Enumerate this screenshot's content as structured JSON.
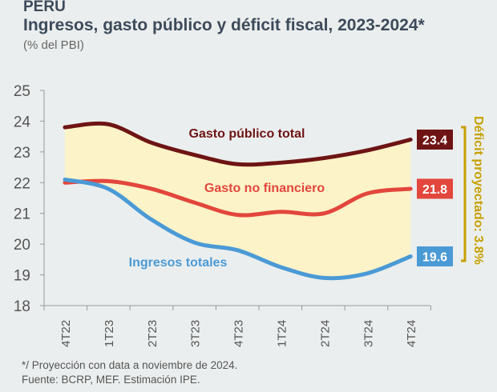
{
  "header": {
    "country": "PERÚ",
    "title": "Ingresos, gasto público y déficit fiscal, 2023-2024*",
    "subtitle": "(% del PBI)"
  },
  "chart_data": {
    "type": "line",
    "categories": [
      "4T22",
      "1T23",
      "2T23",
      "3T23",
      "4T23",
      "1T24",
      "2T24",
      "3T24",
      "4T24"
    ],
    "ylim": [
      18,
      25
    ],
    "yticks": [
      "18",
      "19",
      "20",
      "21",
      "22",
      "23",
      "24",
      "25"
    ],
    "grid": false,
    "series": [
      {
        "name": "Gasto público total",
        "color": "#6e1414",
        "values": [
          23.8,
          23.9,
          23.3,
          22.9,
          22.6,
          22.65,
          22.8,
          23.05,
          23.4
        ],
        "end_label": "23.4"
      },
      {
        "name": "Gasto no financiero",
        "color": "#e2463c",
        "values": [
          22.0,
          22.05,
          21.8,
          21.35,
          20.95,
          21.05,
          21.0,
          21.65,
          21.8
        ],
        "end_label": "21.8"
      },
      {
        "name": "Ingresos totales",
        "color": "#4a9ad6",
        "values": [
          22.1,
          21.8,
          20.8,
          20.05,
          19.8,
          19.25,
          18.9,
          19.05,
          19.6
        ],
        "end_label": "19.6"
      }
    ],
    "fill_color": "#fdf3c8",
    "annotation": "Déficit proyectado: 3.8%",
    "annotation_color": "#c6a000"
  },
  "footer": {
    "note": "*/ Proyección con data a noviembre de 2024.",
    "source": "Fuente: BCRP, MEF. Estimación IPE."
  }
}
